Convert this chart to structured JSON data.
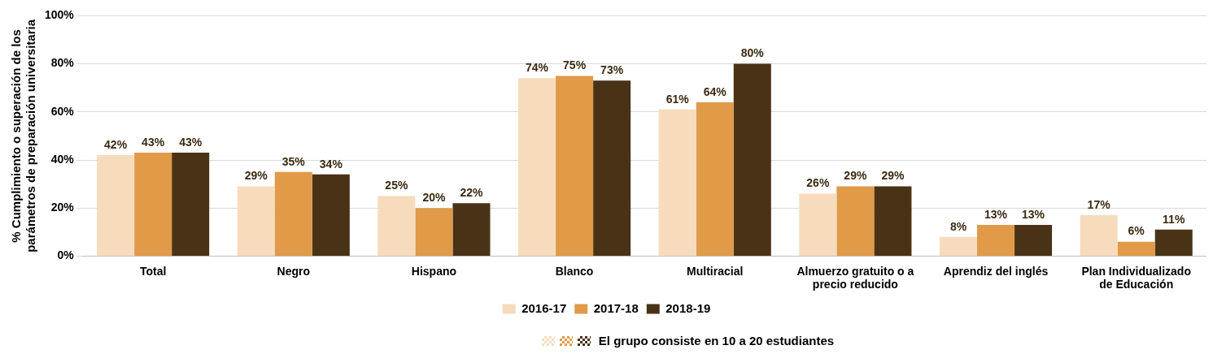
{
  "chart_data": {
    "type": "bar",
    "ylabel": "% Cumplimiento o superación de los parámetros de preparación universitaria",
    "categories": [
      "Total",
      "Negro",
      "Hispano",
      "Blanco",
      "Multiracial",
      "Almuerzo gratuito o a precio reducido",
      "Aprendiz del inglés",
      "Plan Individualizado de Educación"
    ],
    "series": [
      {
        "name": "2016-17",
        "color": "#f6dcbc",
        "values": [
          42,
          29,
          25,
          74,
          61,
          26,
          8,
          17
        ],
        "value_labels": [
          "42%",
          "29%",
          "25%",
          "74%",
          "61%",
          "26%",
          "8%",
          "17%"
        ]
      },
      {
        "name": "2017-18",
        "color": "#e09a48",
        "values": [
          43,
          35,
          20,
          75,
          64,
          29,
          13,
          6
        ],
        "value_labels": [
          "43%",
          "35%",
          "20%",
          "75%",
          "64%",
          "29%",
          "13%",
          "6%"
        ]
      },
      {
        "name": "2018-19",
        "color": "#4a3217",
        "values": [
          43,
          34,
          22,
          73,
          80,
          29,
          13,
          11
        ],
        "value_labels": [
          "43%",
          "34%",
          "22%",
          "73%",
          "80%",
          "29%",
          "13%",
          "11%"
        ]
      }
    ],
    "ylim": [
      0,
      100
    ],
    "yticks": [
      {
        "value": 0,
        "label": "0%"
      },
      {
        "value": 20,
        "label": "20%"
      },
      {
        "value": 40,
        "label": "40%"
      },
      {
        "value": 60,
        "label": "60%"
      },
      {
        "value": 80,
        "label": "80%"
      },
      {
        "value": 100,
        "label": "100%"
      }
    ],
    "grid": "y",
    "legend": "bottom",
    "annotations": [
      "El grupo consiste en 10 a 20 estudiantes"
    ]
  }
}
